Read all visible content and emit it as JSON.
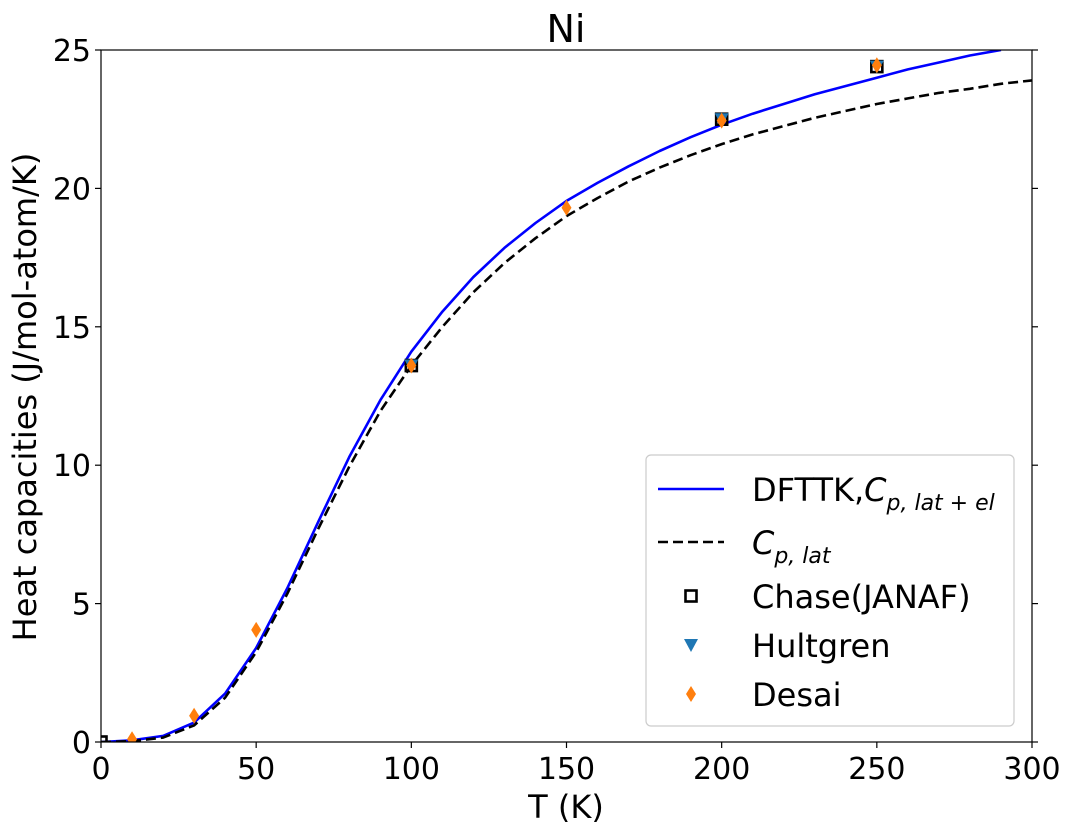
{
  "chart_data": {
    "type": "line",
    "title": "Ni",
    "xlabel": "T (K)",
    "ylabel": "Heat capacities (J/mol-atom/K)",
    "xlim": [
      0,
      300
    ],
    "ylim": [
      0,
      25
    ],
    "x_ticks": [
      0,
      50,
      100,
      150,
      200,
      250,
      300
    ],
    "y_ticks": [
      0,
      5,
      10,
      15,
      20,
      25
    ],
    "grid": false,
    "legend_position": "lower-right",
    "series": [
      {
        "name": "DFTTK,C_{p,lat+el}",
        "legend_main": "DFTTK,",
        "legend_sym": "C",
        "legend_sub": "p, lat + el",
        "kind": "line",
        "style": "solid",
        "color": "#0000ff",
        "x": [
          0,
          10,
          20,
          30,
          40,
          50,
          60,
          70,
          80,
          90,
          100,
          110,
          120,
          130,
          140,
          150,
          160,
          170,
          180,
          190,
          200,
          210,
          220,
          230,
          240,
          250,
          260,
          270,
          280,
          290
        ],
        "y": [
          0,
          0.06,
          0.22,
          0.7,
          1.75,
          3.4,
          5.55,
          7.95,
          10.3,
          12.35,
          14.1,
          15.55,
          16.8,
          17.85,
          18.75,
          19.55,
          20.2,
          20.8,
          21.35,
          21.85,
          22.3,
          22.7,
          23.05,
          23.4,
          23.7,
          24.0,
          24.3,
          24.55,
          24.8,
          25.0
        ]
      },
      {
        "name": "C_{p,lat}",
        "legend_main": "",
        "legend_sym": "C",
        "legend_sub": "p, lat",
        "kind": "line",
        "style": "dashed",
        "color": "#000000",
        "x": [
          0,
          10,
          20,
          30,
          40,
          50,
          60,
          70,
          80,
          90,
          100,
          110,
          120,
          130,
          140,
          150,
          160,
          170,
          180,
          190,
          200,
          210,
          220,
          230,
          240,
          250,
          260,
          270,
          280,
          290,
          300
        ],
        "y": [
          0,
          0.03,
          0.16,
          0.6,
          1.6,
          3.25,
          5.35,
          7.7,
          9.95,
          11.95,
          13.6,
          15.0,
          16.25,
          17.3,
          18.2,
          19.0,
          19.65,
          20.25,
          20.75,
          21.2,
          21.6,
          21.95,
          22.25,
          22.55,
          22.8,
          23.05,
          23.25,
          23.45,
          23.6,
          23.78,
          23.9
        ]
      },
      {
        "name": "Chase(JANAF)",
        "kind": "marker",
        "marker": "square-open",
        "color": "#000000",
        "x": [
          0,
          100,
          200,
          250
        ],
        "y": [
          0,
          13.6,
          22.5,
          24.4
        ]
      },
      {
        "name": "Hultgren",
        "kind": "marker",
        "marker": "triangle-down",
        "color": "#1f77b4",
        "x": [
          100,
          200,
          250
        ],
        "y": [
          13.6,
          22.5,
          24.4
        ]
      },
      {
        "name": "Desai",
        "kind": "marker",
        "marker": "diamond",
        "color": "#ff7f0e",
        "x": [
          10,
          30,
          50,
          100,
          150,
          200,
          250
        ],
        "y": [
          0.1,
          0.95,
          4.05,
          13.6,
          19.3,
          22.45,
          24.45
        ]
      }
    ]
  }
}
